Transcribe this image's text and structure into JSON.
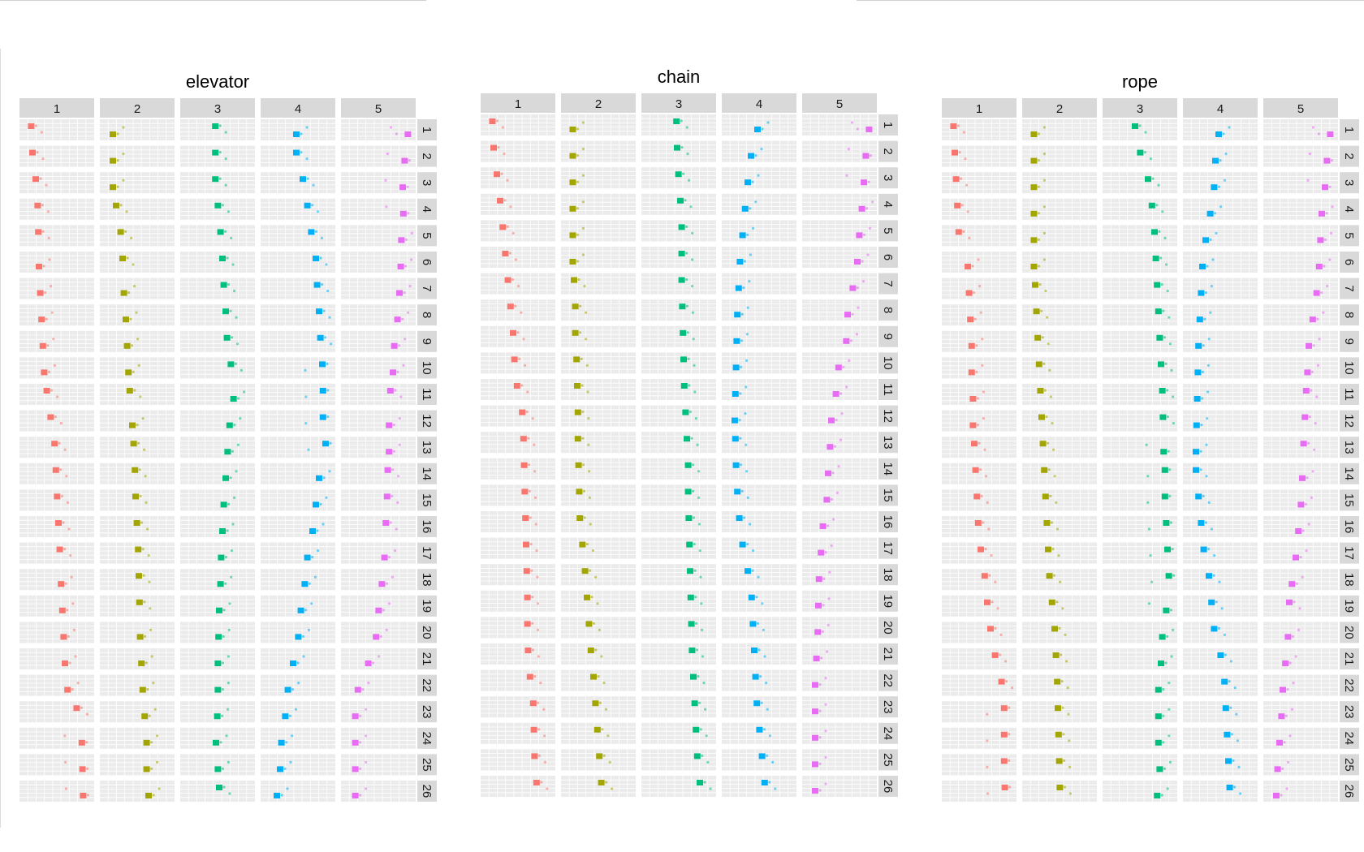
{
  "chart_data": {
    "type": "scatter",
    "facet_layout": "grid: columns 1-5, rows 1-26",
    "grid": true,
    "legend": "none",
    "series_colors": {
      "1": "#F8766D",
      "2": "#A3A500",
      "3": "#00BF7D",
      "4": "#00B0F6",
      "5": "#E76BF3"
    },
    "column_labels": [
      "1",
      "2",
      "3",
      "4",
      "5"
    ],
    "row_labels": [
      "1",
      "2",
      "3",
      "4",
      "5",
      "6",
      "7",
      "8",
      "9",
      "10",
      "11",
      "12",
      "13",
      "14",
      "15",
      "16",
      "17",
      "18",
      "19",
      "20",
      "21",
      "22",
      "23",
      "24",
      "25",
      "26"
    ],
    "panels": [
      {
        "title": "elevator",
        "columns": {
          "1": {
            "main_x": [
              0.08,
              0.1,
              0.15,
              0.18,
              0.19,
              0.2,
              0.22,
              0.24,
              0.26,
              0.28,
              0.32,
              0.38,
              0.44,
              0.46,
              0.48,
              0.5,
              0.52,
              0.54,
              0.56,
              0.58,
              0.6,
              0.64,
              0.78,
              0.86,
              0.87,
              0.88
            ],
            "main_row": [
              0,
              0,
              0,
              0,
              0,
              1,
              1,
              1,
              1,
              1,
              0,
              0,
              0,
              0,
              0,
              0,
              0,
              1,
              1,
              1,
              1,
              1,
              0,
              1,
              1,
              1
            ]
          },
          "2": {
            "main_x": [
              0.1,
              0.1,
              0.1,
              0.15,
              0.22,
              0.25,
              0.27,
              0.3,
              0.32,
              0.34,
              0.36,
              0.4,
              0.42,
              0.44,
              0.45,
              0.47,
              0.49,
              0.5,
              0.51,
              0.52,
              0.54,
              0.56,
              0.59,
              0.62,
              0.62,
              0.65
            ],
            "main_row": [
              1,
              1,
              1,
              0,
              0,
              0,
              1,
              1,
              1,
              1,
              0,
              1,
              0,
              0,
              0,
              0,
              0,
              0,
              0,
              1,
              1,
              1,
              1,
              1,
              1,
              1
            ]
          },
          "3": {
            "main_x": [
              0.44,
              0.44,
              0.44,
              0.48,
              0.52,
              0.55,
              0.57,
              0.6,
              0.62,
              0.68,
              0.72,
              0.66,
              0.63,
              0.6,
              0.57,
              0.55,
              0.53,
              0.52,
              0.5,
              0.49,
              0.48,
              0.48,
              0.47,
              0.45,
              0.48,
              0.5
            ],
            "main_row": [
              0,
              0,
              0,
              0,
              0,
              0,
              0,
              0,
              0,
              0,
              1,
              1,
              1,
              1,
              1,
              1,
              1,
              1,
              1,
              1,
              1,
              1,
              1,
              1,
              1,
              0
            ]
          },
          "4": {
            "main_x": [
              0.45,
              0.45,
              0.55,
              0.62,
              0.68,
              0.75,
              0.77,
              0.8,
              0.82,
              0.85,
              0.86,
              0.86,
              0.9,
              0.8,
              0.75,
              0.7,
              0.62,
              0.58,
              0.52,
              0.48,
              0.4,
              0.32,
              0.28,
              0.22,
              0.2,
              0.15
            ],
            "main_row": [
              1,
              0,
              0,
              0,
              0,
              0,
              0,
              0,
              0,
              0,
              0,
              0,
              0,
              1,
              1,
              1,
              1,
              1,
              1,
              1,
              1,
              1,
              1,
              1,
              1,
              1
            ]
          },
          "5": {
            "main_x": [
              0.93,
              0.88,
              0.85,
              0.86,
              0.83,
              0.82,
              0.8,
              0.77,
              0.72,
              0.7,
              0.66,
              0.64,
              0.64,
              0.62,
              0.61,
              0.59,
              0.57,
              0.53,
              0.48,
              0.44,
              0.32,
              0.16,
              0.12,
              0.12,
              0.12,
              0.12
            ],
            "main_row": [
              1,
              1,
              1,
              1,
              1,
              1,
              1,
              1,
              1,
              1,
              0,
              1,
              1,
              0,
              0,
              0,
              1,
              1,
              1,
              1,
              1,
              1,
              1,
              1,
              1,
              1
            ]
          }
        }
      },
      {
        "title": "chain",
        "columns": {
          "1": {
            "main_x": [
              0.08,
              0.1,
              0.15,
              0.2,
              0.24,
              0.28,
              0.32,
              0.36,
              0.4,
              0.42,
              0.46,
              0.54,
              0.56,
              0.57,
              0.58,
              0.59,
              0.6,
              0.61,
              0.62,
              0.62,
              0.63,
              0.66,
              0.71,
              0.72,
              0.73,
              0.76
            ],
            "main_row": [
              0,
              0,
              0,
              0,
              0,
              0,
              0,
              0,
              0,
              0,
              0,
              0,
              0,
              0,
              0,
              0,
              0,
              0,
              0,
              0,
              0,
              0,
              0,
              0,
              0,
              0
            ]
          },
          "2": {
            "main_x": [
              0.08,
              0.08,
              0.08,
              0.08,
              0.08,
              0.08,
              0.1,
              0.12,
              0.12,
              0.14,
              0.15,
              0.16,
              0.16,
              0.17,
              0.18,
              0.19,
              0.23,
              0.27,
              0.3,
              0.33,
              0.36,
              0.4,
              0.43,
              0.46,
              0.49,
              0.52
            ],
            "main_row": [
              1,
              1,
              1,
              1,
              1,
              1,
              0,
              0,
              0,
              0,
              0,
              0,
              0,
              0,
              0,
              0,
              0,
              0,
              0,
              0,
              0,
              0,
              0,
              0,
              0,
              0
            ]
          },
          "3": {
            "main_x": [
              0.44,
              0.45,
              0.47,
              0.5,
              0.52,
              0.52,
              0.52,
              0.53,
              0.54,
              0.55,
              0.56,
              0.58,
              0.6,
              0.62,
              0.62,
              0.63,
              0.64,
              0.65,
              0.66,
              0.67,
              0.68,
              0.7,
              0.72,
              0.74,
              0.76,
              0.8
            ],
            "main_row": [
              0,
              0,
              0,
              0,
              0,
              0,
              0,
              0,
              0,
              0,
              0,
              0,
              0,
              0,
              0,
              0,
              0,
              0,
              0,
              0,
              0,
              0,
              0,
              0,
              0,
              0
            ]
          },
          "4": {
            "main_x": [
              0.45,
              0.35,
              0.3,
              0.26,
              0.22,
              0.18,
              0.16,
              0.14,
              0.13,
              0.12,
              0.11,
              0.1,
              0.11,
              0.12,
              0.14,
              0.17,
              0.22,
              0.3,
              0.36,
              0.38,
              0.4,
              0.42,
              0.44,
              0.48,
              0.52,
              0.56
            ],
            "main_row": [
              1,
              1,
              1,
              1,
              1,
              1,
              1,
              1,
              1,
              1,
              1,
              1,
              0,
              0,
              0,
              0,
              0,
              0,
              0,
              0,
              0,
              0,
              0,
              0,
              0,
              0
            ]
          },
          "5": {
            "main_x": [
              0.93,
              0.88,
              0.85,
              0.82,
              0.78,
              0.75,
              0.68,
              0.6,
              0.58,
              0.46,
              0.42,
              0.35,
              0.33,
              0.3,
              0.28,
              0.22,
              0.19,
              0.16,
              0.15,
              0.14,
              0.12,
              0.1,
              0.1,
              0.1,
              0.1,
              0.1
            ],
            "main_row": [
              1,
              1,
              1,
              1,
              1,
              1,
              1,
              1,
              1,
              1,
              1,
              1,
              1,
              1,
              1,
              1,
              1,
              1,
              1,
              1,
              1,
              1,
              1,
              1,
              1,
              1
            ]
          }
        }
      },
      {
        "title": "rope",
        "columns": {
          "1": {
            "main_x": [
              0.08,
              0.1,
              0.12,
              0.14,
              0.16,
              0.3,
              0.32,
              0.34,
              0.36,
              0.36,
              0.38,
              0.38,
              0.4,
              0.42,
              0.44,
              0.46,
              0.5,
              0.56,
              0.6,
              0.65,
              0.72,
              0.82,
              0.86,
              0.86,
              0.86,
              0.87
            ],
            "main_row": [
              0,
              0,
              0,
              0,
              0,
              1,
              1,
              1,
              1,
              1,
              1,
              1,
              0,
              0,
              0,
              0,
              0,
              0,
              0,
              0,
              0,
              0,
              0,
              0,
              0,
              0
            ]
          },
          "2": {
            "main_x": [
              0.08,
              0.08,
              0.08,
              0.08,
              0.08,
              0.08,
              0.1,
              0.12,
              0.14,
              0.16,
              0.18,
              0.2,
              0.22,
              0.24,
              0.26,
              0.28,
              0.3,
              0.32,
              0.36,
              0.4,
              0.42,
              0.44,
              0.45,
              0.46,
              0.47,
              0.48
            ],
            "main_row": [
              1,
              1,
              1,
              1,
              1,
              1,
              0,
              0,
              0,
              0,
              0,
              0,
              0,
              0,
              0,
              0,
              0,
              0,
              0,
              0,
              0,
              0,
              0,
              0,
              0,
              0
            ]
          },
          "3": {
            "main_x": [
              0.4,
              0.48,
              0.6,
              0.66,
              0.7,
              0.72,
              0.74,
              0.76,
              0.78,
              0.8,
              0.82,
              0.83,
              0.84,
              0.86,
              0.86,
              0.88,
              0.9,
              0.92,
              0.88,
              0.82,
              0.8,
              0.76,
              0.76,
              0.76,
              0.78,
              0.74
            ],
            "main_row": [
              0,
              0,
              0,
              0,
              0,
              0,
              0,
              0,
              0,
              0,
              0,
              0,
              1,
              0,
              0,
              0,
              0,
              0,
              1,
              1,
              1,
              1,
              1,
              1,
              1,
              1
            ]
          },
          "4": {
            "main_x": [
              0.45,
              0.4,
              0.38,
              0.32,
              0.25,
              0.2,
              0.18,
              0.16,
              0.14,
              0.13,
              0.12,
              0.11,
              0.1,
              0.1,
              0.14,
              0.18,
              0.22,
              0.3,
              0.34,
              0.38,
              0.48,
              0.54,
              0.56,
              0.58,
              0.6,
              0.62
            ],
            "main_row": [
              1,
              1,
              1,
              1,
              1,
              1,
              1,
              1,
              1,
              1,
              1,
              1,
              1,
              0,
              0,
              0,
              0,
              0,
              0,
              0,
              0,
              0,
              0,
              0,
              0,
              0
            ]
          },
          "5": {
            "main_x": [
              0.93,
              0.88,
              0.85,
              0.8,
              0.78,
              0.76,
              0.72,
              0.66,
              0.6,
              0.58,
              0.56,
              0.54,
              0.52,
              0.5,
              0.48,
              0.44,
              0.4,
              0.34,
              0.3,
              0.28,
              0.24,
              0.2,
              0.18,
              0.15,
              0.12,
              0.1
            ],
            "main_row": [
              1,
              1,
              1,
              1,
              1,
              1,
              1,
              1,
              1,
              1,
              0,
              0,
              0,
              1,
              1,
              1,
              1,
              1,
              0,
              1,
              1,
              1,
              1,
              1,
              1,
              1
            ]
          }
        }
      }
    ]
  }
}
